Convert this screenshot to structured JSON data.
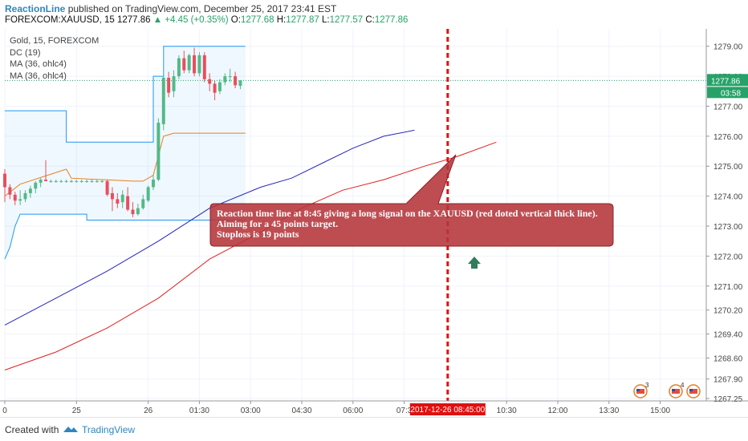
{
  "header": {
    "author": "ReactionLine",
    "published": "published on TradingView.com, December 25, 2017 23:41 EST",
    "symbol": "FOREXCOM:XAUUSD, 15",
    "last": "1277.86",
    "change": "▲ +4.45 (+0.35%)",
    "o_label": "O:",
    "o_value": "1277.68",
    "h_label": "H:",
    "h_value": "1277.87",
    "l_label": "L:",
    "l_value": "1277.57",
    "c_label": "C:",
    "c_value": "1277.86"
  },
  "legend": {
    "title": "Gold, 15, FOREXCOM",
    "dc": "DC (19)",
    "ma1": "MA (36, ohlc4)",
    "ma2": "MA (36, ohlc4)"
  },
  "callout": {
    "line1": "Reaction time line at 8:45 giving a long signal on the XAUUSD (red doted  vertical thick line).",
    "line2": "Aiming for a 45 points target.",
    "line3": "Stoploss is 19 points"
  },
  "footer": {
    "created": "Created with",
    "brand": "TradingView"
  },
  "colors": {
    "up": "#53b987",
    "down": "#eb4d5c",
    "dc_band": "#2196f3",
    "dc_mid": "#e67e22",
    "ma_blue": "#2626b8",
    "ma_red": "#e02020",
    "callout_bg": "#b5343a",
    "vline": "#e01010"
  },
  "chart_data": {
    "type": "candlestick",
    "symbol": "FOREXCOM:XAUUSD",
    "ylim": [
      1267.25,
      1279.5
    ],
    "yticks": [
      1279.0,
      1278.0,
      1277.0,
      1276.0,
      1275.0,
      1274.0,
      1273.0,
      1272.0,
      1271.0,
      1270.2,
      1269.4,
      1268.6,
      1267.9,
      1267.25
    ],
    "ytick_labels": [
      "1279.00",
      "1278.00",
      "1277.00",
      "1276.00",
      "1275.00",
      "1274.00",
      "1273.00",
      "1272.00",
      "1271.00",
      "1270.20",
      "1269.40",
      "1268.60",
      "1267.90",
      "1267.25"
    ],
    "last_price_label": "1277.86",
    "last_price": 1277.86,
    "countdown_label": "03:58",
    "xlim": [
      0,
      137
    ],
    "xticks": [
      {
        "i": 0,
        "label": "0"
      },
      {
        "i": 14,
        "label": "25"
      },
      {
        "i": 28,
        "label": "26"
      },
      {
        "i": 38,
        "label": "01:30"
      },
      {
        "i": 48,
        "label": "03:00"
      },
      {
        "i": 58,
        "label": "04:30"
      },
      {
        "i": 68,
        "label": "06:00"
      },
      {
        "i": 78,
        "label": "07:3"
      },
      {
        "i": 98,
        "label": "10:30"
      },
      {
        "i": 108,
        "label": "12:00"
      },
      {
        "i": 118,
        "label": "13:30"
      },
      {
        "i": 128,
        "label": "15:00"
      }
    ],
    "signal": {
      "i": 86.5,
      "label": "2017-12-26 08:45:00"
    },
    "candles": [
      {
        "i": 0,
        "o": 1274.75,
        "h": 1274.9,
        "l": 1273.8,
        "c": 1274.3
      },
      {
        "i": 1,
        "o": 1274.3,
        "h": 1274.4,
        "l": 1273.9,
        "c": 1274.05
      },
      {
        "i": 2,
        "o": 1274.05,
        "h": 1274.15,
        "l": 1273.7,
        "c": 1273.85
      },
      {
        "i": 3,
        "o": 1273.85,
        "h": 1274.2,
        "l": 1273.7,
        "c": 1273.9
      },
      {
        "i": 4,
        "o": 1273.9,
        "h": 1274.2,
        "l": 1273.8,
        "c": 1274.1
      },
      {
        "i": 5,
        "o": 1274.1,
        "h": 1274.35,
        "l": 1273.95,
        "c": 1274.25
      },
      {
        "i": 6,
        "o": 1274.25,
        "h": 1274.5,
        "l": 1274.1,
        "c": 1274.45
      },
      {
        "i": 7,
        "o": 1274.45,
        "h": 1274.6,
        "l": 1274.3,
        "c": 1274.55
      },
      {
        "i": 8,
        "o": 1274.55,
        "h": 1275.2,
        "l": 1274.5,
        "c": 1274.5
      },
      {
        "i": 9,
        "o": 1274.5,
        "h": 1274.55,
        "l": 1274.45,
        "c": 1274.5
      },
      {
        "i": 10,
        "o": 1274.5,
        "h": 1274.55,
        "l": 1274.45,
        "c": 1274.5
      },
      {
        "i": 11,
        "o": 1274.5,
        "h": 1274.55,
        "l": 1274.45,
        "c": 1274.5
      },
      {
        "i": 12,
        "o": 1274.5,
        "h": 1274.55,
        "l": 1274.45,
        "c": 1274.5
      },
      {
        "i": 13,
        "o": 1274.5,
        "h": 1274.55,
        "l": 1274.45,
        "c": 1274.5
      },
      {
        "i": 14,
        "o": 1274.5,
        "h": 1274.55,
        "l": 1274.45,
        "c": 1274.5
      },
      {
        "i": 15,
        "o": 1274.5,
        "h": 1274.55,
        "l": 1274.45,
        "c": 1274.5
      },
      {
        "i": 16,
        "o": 1274.5,
        "h": 1274.55,
        "l": 1274.45,
        "c": 1274.5
      },
      {
        "i": 17,
        "o": 1274.5,
        "h": 1274.55,
        "l": 1274.45,
        "c": 1274.5
      },
      {
        "i": 18,
        "o": 1274.5,
        "h": 1274.55,
        "l": 1274.45,
        "c": 1274.5
      },
      {
        "i": 19,
        "o": 1274.5,
        "h": 1274.55,
        "l": 1274.45,
        "c": 1274.5
      },
      {
        "i": 20,
        "o": 1274.5,
        "h": 1274.55,
        "l": 1274.0,
        "c": 1274.05
      },
      {
        "i": 21,
        "o": 1274.1,
        "h": 1274.3,
        "l": 1273.5,
        "c": 1273.9
      },
      {
        "i": 22,
        "o": 1273.9,
        "h": 1274.1,
        "l": 1273.6,
        "c": 1273.75
      },
      {
        "i": 23,
        "o": 1273.8,
        "h": 1274.2,
        "l": 1273.6,
        "c": 1274.05
      },
      {
        "i": 24,
        "o": 1274.0,
        "h": 1274.3,
        "l": 1273.5,
        "c": 1273.55
      },
      {
        "i": 25,
        "o": 1273.55,
        "h": 1273.8,
        "l": 1273.3,
        "c": 1273.4
      },
      {
        "i": 26,
        "o": 1273.4,
        "h": 1273.75,
        "l": 1273.35,
        "c": 1273.6
      },
      {
        "i": 27,
        "o": 1273.6,
        "h": 1274.05,
        "l": 1273.55,
        "c": 1273.9
      },
      {
        "i": 28,
        "o": 1273.85,
        "h": 1274.35,
        "l": 1273.8,
        "c": 1274.3
      },
      {
        "i": 29,
        "o": 1274.3,
        "h": 1274.7,
        "l": 1274.2,
        "c": 1274.55
      },
      {
        "i": 30,
        "o": 1274.55,
        "h": 1276.6,
        "l": 1274.5,
        "c": 1276.45
      },
      {
        "i": 31,
        "o": 1276.4,
        "h": 1278.05,
        "l": 1276.2,
        "c": 1277.95
      },
      {
        "i": 32,
        "o": 1277.95,
        "h": 1278.15,
        "l": 1277.3,
        "c": 1277.45
      },
      {
        "i": 33,
        "o": 1277.5,
        "h": 1278.2,
        "l": 1277.3,
        "c": 1278.0
      },
      {
        "i": 34,
        "o": 1278.0,
        "h": 1278.7,
        "l": 1277.9,
        "c": 1278.6
      },
      {
        "i": 35,
        "o": 1278.6,
        "h": 1278.85,
        "l": 1278.1,
        "c": 1278.2
      },
      {
        "i": 36,
        "o": 1278.2,
        "h": 1278.75,
        "l": 1278.1,
        "c": 1278.7
      },
      {
        "i": 37,
        "o": 1278.7,
        "h": 1278.95,
        "l": 1278.0,
        "c": 1278.1
      },
      {
        "i": 38,
        "o": 1278.1,
        "h": 1278.8,
        "l": 1278.0,
        "c": 1278.7
      },
      {
        "i": 39,
        "o": 1278.7,
        "h": 1278.8,
        "l": 1277.8,
        "c": 1277.9
      },
      {
        "i": 40,
        "o": 1277.9,
        "h": 1278.1,
        "l": 1277.5,
        "c": 1277.75
      },
      {
        "i": 41,
        "o": 1277.75,
        "h": 1277.85,
        "l": 1277.2,
        "c": 1277.45
      },
      {
        "i": 42,
        "o": 1277.5,
        "h": 1277.9,
        "l": 1277.4,
        "c": 1277.8
      },
      {
        "i": 43,
        "o": 1277.8,
        "h": 1278.1,
        "l": 1277.7,
        "c": 1278.0
      },
      {
        "i": 44,
        "o": 1278.0,
        "h": 1278.25,
        "l": 1277.8,
        "c": 1278.0
      },
      {
        "i": 45,
        "o": 1278.0,
        "h": 1278.15,
        "l": 1277.6,
        "c": 1277.7
      },
      {
        "i": 46,
        "o": 1277.68,
        "h": 1277.87,
        "l": 1277.57,
        "c": 1277.86
      }
    ],
    "overlays": {
      "dc_upper": [
        [
          0,
          1276.85
        ],
        [
          12,
          1276.85
        ],
        [
          12,
          1275.8
        ],
        [
          25,
          1275.8
        ],
        [
          25,
          1275.8
        ],
        [
          29,
          1275.8
        ],
        [
          29,
          1278.0
        ],
        [
          31,
          1278.0
        ],
        [
          31,
          1279.0
        ],
        [
          47,
          1279.0
        ]
      ],
      "dc_lower": [
        [
          0,
          1271.9
        ],
        [
          1,
          1272.3
        ],
        [
          2,
          1273.0
        ],
        [
          3,
          1273.4
        ],
        [
          8,
          1273.4
        ],
        [
          13,
          1273.4
        ],
        [
          16,
          1273.4
        ],
        [
          16,
          1273.2
        ],
        [
          28,
          1273.2
        ],
        [
          47,
          1273.2
        ]
      ],
      "dc_mid": [
        [
          0,
          1274.0
        ],
        [
          3,
          1274.4
        ],
        [
          12,
          1274.9
        ],
        [
          13,
          1274.6
        ],
        [
          25,
          1274.5
        ],
        [
          27,
          1274.5
        ],
        [
          29,
          1274.7
        ],
        [
          31,
          1276.0
        ],
        [
          33,
          1276.1
        ],
        [
          47,
          1276.1
        ]
      ],
      "ma_blue": [
        [
          0,
          1269.7
        ],
        [
          10,
          1270.6
        ],
        [
          20,
          1271.5
        ],
        [
          30,
          1272.5
        ],
        [
          40,
          1273.6
        ],
        [
          50,
          1274.3
        ],
        [
          56,
          1274.6
        ],
        [
          62,
          1275.1
        ],
        [
          68,
          1275.6
        ],
        [
          74,
          1276.0
        ],
        [
          80,
          1276.2
        ]
      ],
      "ma_red": [
        [
          0,
          1268.2
        ],
        [
          10,
          1268.8
        ],
        [
          20,
          1269.6
        ],
        [
          30,
          1270.6
        ],
        [
          40,
          1271.9
        ],
        [
          50,
          1272.8
        ],
        [
          58,
          1273.6
        ],
        [
          66,
          1274.2
        ],
        [
          74,
          1274.55
        ],
        [
          82,
          1275.0
        ],
        [
          88,
          1275.3
        ],
        [
          96,
          1275.8
        ]
      ]
    }
  }
}
